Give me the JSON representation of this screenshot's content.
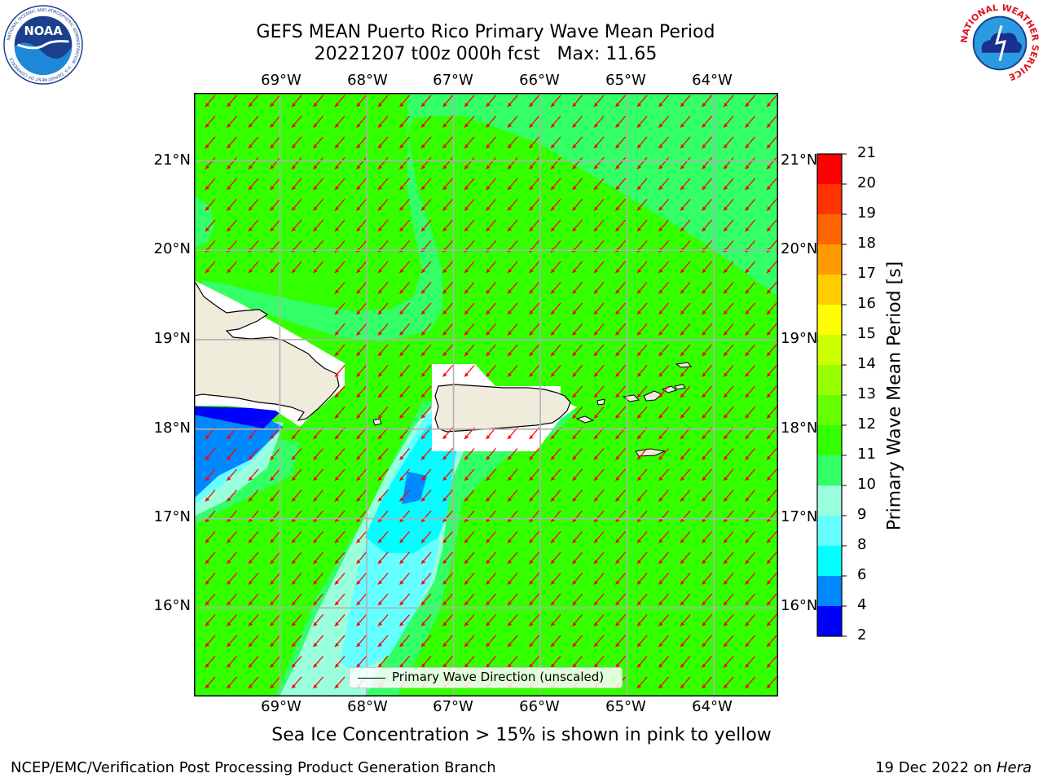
{
  "title": {
    "line1": "GEFS MEAN Puerto Rico Primary Wave Mean Period",
    "line2": "20221207 t00z 000h fcst   Max: 11.65"
  },
  "axes": {
    "lon_labels": [
      "69°W",
      "68°W",
      "67°W",
      "66°W",
      "65°W",
      "64°W"
    ],
    "lat_labels": [
      "21°N",
      "20°N",
      "19°N",
      "18°N",
      "17°N",
      "16°N"
    ],
    "lon_values": [
      -69,
      -68,
      -67,
      -66,
      -65,
      -64
    ],
    "lat_values": [
      21,
      20,
      19,
      18,
      17,
      16
    ],
    "lon_range": [
      -69.99,
      -63.26
    ],
    "lat_range": [
      15.01,
      21.76
    ]
  },
  "colorbar": {
    "label": "Primary Wave Mean Period [s]",
    "ticks": [
      "21",
      "20",
      "19",
      "18",
      "17",
      "16",
      "15",
      "14",
      "13",
      "12",
      "11",
      "10",
      "9",
      "8",
      "6",
      "4",
      "2"
    ],
    "colors": [
      "#ff0000",
      "#ff3300",
      "#ff6600",
      "#ff9900",
      "#ffcc00",
      "#ffff00",
      "#ccff00",
      "#99ff00",
      "#66ff00",
      "#33ff00",
      "#33ff66",
      "#99ffdd",
      "#66ffff",
      "#00ffff",
      "#0088ff",
      "#0000ff"
    ]
  },
  "map_colors": {
    "period_10_11": "#33ff66",
    "period_11_12": "#33ff00",
    "period_9_10": "#99ffdd",
    "period_8_9": "#66ffff",
    "period_6_8": "#00ffff",
    "period_4_6": "#0088ff",
    "period_2_4": "#0000ff",
    "land": "#efecdc",
    "arrows": "#ff0000"
  },
  "legend": {
    "label": "Primary Wave Direction (unscaled)"
  },
  "note": "Sea Ice Concentration > 15% is shown in pink to yellow",
  "footer": {
    "left": "NCEP/EMC/Verification Post Processing Product Generation Branch",
    "right_prefix": "19 Dec 2022 on ",
    "right_italic": "Hera"
  },
  "logos": {
    "noaa": "NOAA",
    "noaa_ring": "NATIONAL OCEANIC AND ATMOSPHERIC ADMINISTRATION · U.S. DEPARTMENT OF COMMERCE",
    "nws_ring": "NATIONAL WEATHER SERVICE"
  }
}
